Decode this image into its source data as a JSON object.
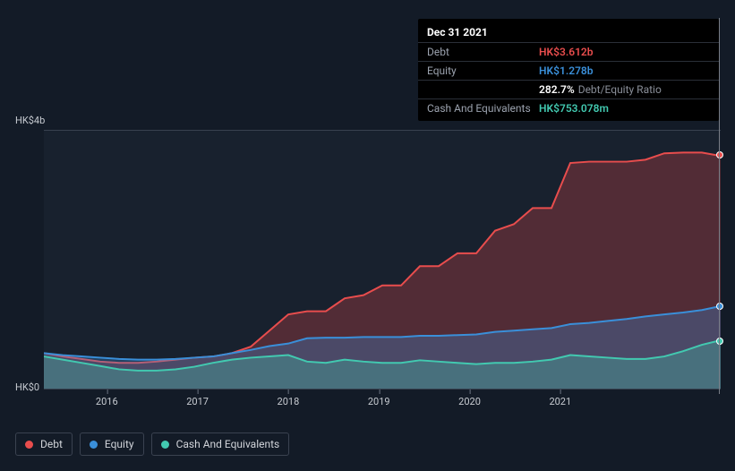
{
  "chart": {
    "type": "area",
    "background_color": "#131b27",
    "plot_background_color": "#18212e",
    "grid_color": "#38414f",
    "label_color": "#c7cbd1",
    "label_fontsize": 11,
    "y_axis": {
      "min": 0,
      "max": 4,
      "unit": "HK$b",
      "ticks": [
        {
          "value": 0,
          "label": "HK$0"
        },
        {
          "value": 4,
          "label": "HK$4b"
        }
      ]
    },
    "x_axis": {
      "ticks": [
        "2016",
        "2017",
        "2018",
        "2019",
        "2020",
        "2021"
      ],
      "positions": [
        0.093,
        0.227,
        0.361,
        0.495,
        0.629,
        0.763
      ]
    },
    "series": {
      "debt": {
        "label": "Debt",
        "color": "#e84d4d",
        "fill_opacity": 0.28,
        "line_width": 2,
        "values": [
          0.55,
          0.5,
          0.46,
          0.42,
          0.4,
          0.4,
          0.42,
          0.45,
          0.48,
          0.5,
          0.55,
          0.65,
          0.9,
          1.15,
          1.2,
          1.2,
          1.4,
          1.45,
          1.6,
          1.6,
          1.9,
          1.9,
          2.1,
          2.1,
          2.45,
          2.55,
          2.8,
          2.8,
          3.5,
          3.52,
          3.52,
          3.52,
          3.55,
          3.65,
          3.66,
          3.66,
          3.61
        ]
      },
      "equity": {
        "label": "Equity",
        "color": "#3a8fd9",
        "fill_opacity": 0.3,
        "line_width": 2,
        "values": [
          0.55,
          0.52,
          0.5,
          0.48,
          0.46,
          0.45,
          0.45,
          0.46,
          0.48,
          0.5,
          0.55,
          0.6,
          0.66,
          0.7,
          0.78,
          0.79,
          0.79,
          0.8,
          0.8,
          0.8,
          0.82,
          0.82,
          0.83,
          0.84,
          0.88,
          0.9,
          0.92,
          0.94,
          1.0,
          1.02,
          1.05,
          1.08,
          1.12,
          1.15,
          1.18,
          1.22,
          1.28
        ]
      },
      "cash": {
        "label": "Cash And Equivalents",
        "color": "#42c9b0",
        "fill_opacity": 0.3,
        "line_width": 2,
        "values": [
          0.5,
          0.45,
          0.4,
          0.35,
          0.3,
          0.28,
          0.28,
          0.3,
          0.34,
          0.4,
          0.45,
          0.48,
          0.5,
          0.52,
          0.42,
          0.4,
          0.45,
          0.42,
          0.4,
          0.4,
          0.44,
          0.42,
          0.4,
          0.38,
          0.4,
          0.4,
          0.42,
          0.45,
          0.52,
          0.5,
          0.48,
          0.46,
          0.46,
          0.5,
          0.58,
          0.68,
          0.75
        ]
      }
    },
    "samples": 37
  },
  "tooltip": {
    "date": "Dec 31 2021",
    "rows": [
      {
        "label": "Debt",
        "value": "HK$3.612b",
        "color": "#e84d4d"
      },
      {
        "label": "Equity",
        "value": "HK$1.278b",
        "color": "#3a8fd9"
      },
      {
        "label": "",
        "value": "282.7%",
        "color": "#ffffff",
        "extra": "Debt/Equity Ratio"
      },
      {
        "label": "Cash And Equivalents",
        "value": "HK$753.078m",
        "color": "#42c9b0"
      }
    ]
  },
  "legend": {
    "items": [
      {
        "key": "debt",
        "label": "Debt",
        "color": "#e84d4d"
      },
      {
        "key": "equity",
        "label": "Equity",
        "color": "#3a8fd9"
      },
      {
        "key": "cash",
        "label": "Cash And Equivalents",
        "color": "#42c9b0"
      }
    ],
    "border_color": "#3a4250",
    "text_color": "#d0d3d9"
  }
}
